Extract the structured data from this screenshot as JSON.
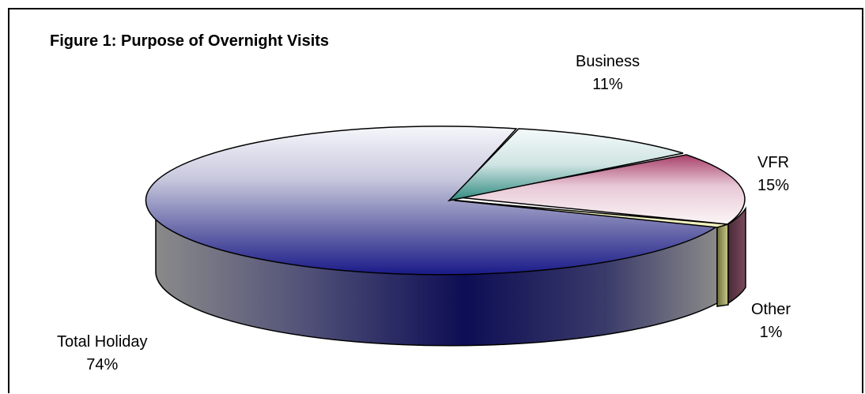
{
  "chart_data": {
    "type": "pie",
    "title": "Figure 1: Purpose of Overnight Visits",
    "slices": [
      {
        "label": "Total Holiday",
        "value": 74,
        "display": "74%"
      },
      {
        "label": "Business",
        "value": 11,
        "display": "11%"
      },
      {
        "label": "VFR",
        "value": 15,
        "display": "15%"
      },
      {
        "label": "Other",
        "value": 1,
        "display": "1%"
      }
    ],
    "style": "3d-exploded",
    "legend": "none"
  }
}
